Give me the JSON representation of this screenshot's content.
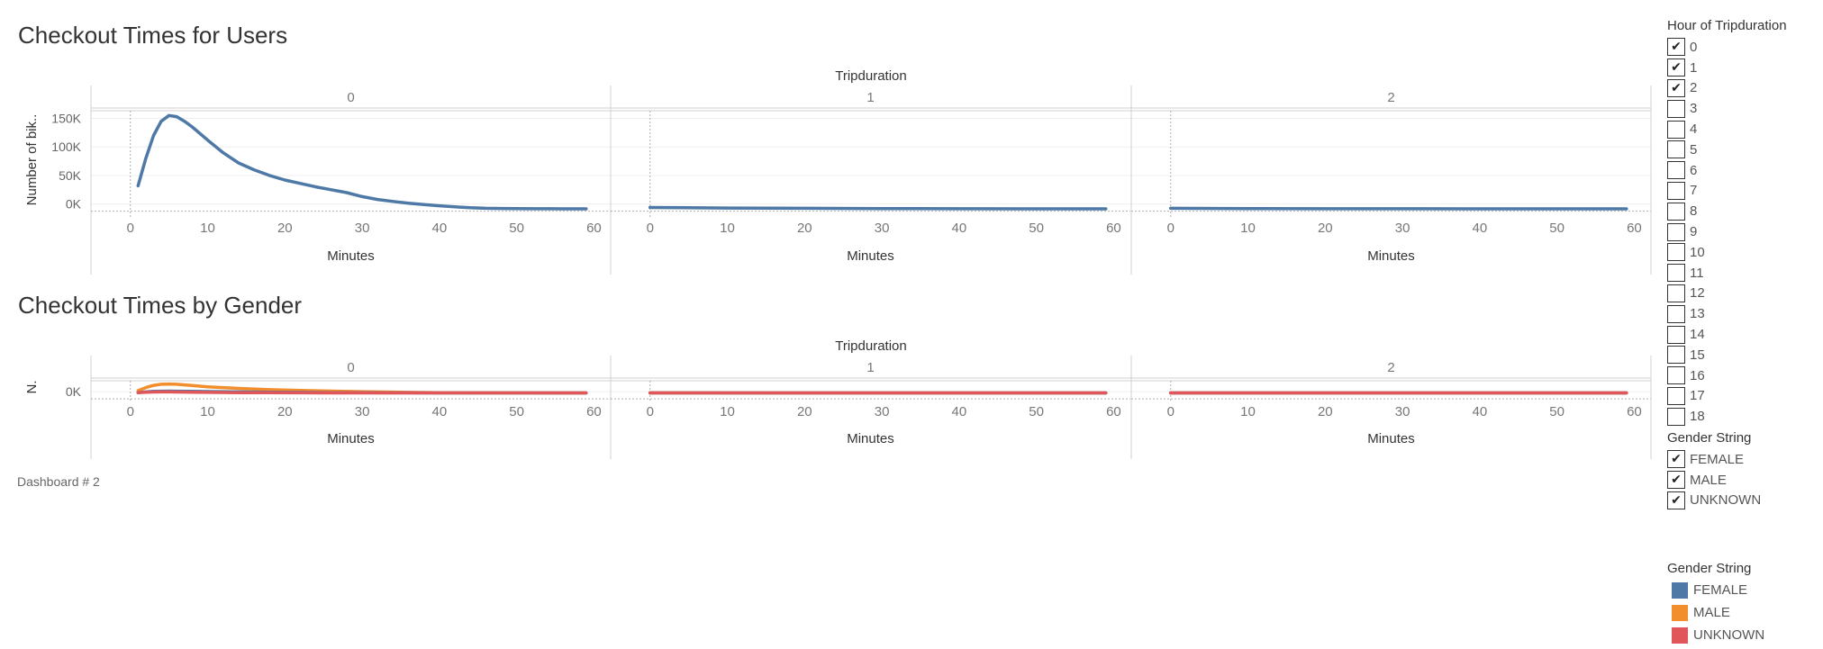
{
  "dashboard": {
    "caption": "Dashboard # 2"
  },
  "filters": {
    "hour": {
      "title": "Hour of Tripduration",
      "items": [
        {
          "label": "0",
          "checked": true
        },
        {
          "label": "1",
          "checked": true
        },
        {
          "label": "2",
          "checked": true
        },
        {
          "label": "3",
          "checked": false
        },
        {
          "label": "4",
          "checked": false
        },
        {
          "label": "5",
          "checked": false
        },
        {
          "label": "6",
          "checked": false
        },
        {
          "label": "7",
          "checked": false
        },
        {
          "label": "8",
          "checked": false
        },
        {
          "label": "9",
          "checked": false
        },
        {
          "label": "10",
          "checked": false
        },
        {
          "label": "11",
          "checked": false
        },
        {
          "label": "12",
          "checked": false
        },
        {
          "label": "13",
          "checked": false
        },
        {
          "label": "14",
          "checked": false
        },
        {
          "label": "15",
          "checked": false
        },
        {
          "label": "16",
          "checked": false
        },
        {
          "label": "17",
          "checked": false
        },
        {
          "label": "18",
          "checked": false
        }
      ]
    },
    "gender": {
      "title": "Gender String",
      "items": [
        {
          "label": "FEMALE",
          "checked": true
        },
        {
          "label": "MALE",
          "checked": true
        },
        {
          "label": "UNKNOWN",
          "checked": true
        }
      ]
    }
  },
  "legend": {
    "title": "Gender String",
    "items": [
      {
        "label": "FEMALE",
        "color": "#4e79a7"
      },
      {
        "label": "MALE",
        "color": "#f28e2b"
      },
      {
        "label": "UNKNOWN",
        "color": "#e15759"
      }
    ]
  },
  "chart_data": [
    {
      "type": "line",
      "title": "Checkout Times for Users",
      "column_header": "Tripduration",
      "panels": [
        "0",
        "1",
        "2"
      ],
      "xlabel": "Minutes",
      "ylabel": "Number of bik..",
      "xlim": [
        -3,
        61
      ],
      "xticks": [
        0,
        10,
        20,
        30,
        40,
        50,
        60
      ],
      "ylim": [
        -10000,
        165000
      ],
      "yticks": [
        {
          "value": 0,
          "label": "0K"
        },
        {
          "value": 50000,
          "label": "50K"
        },
        {
          "value": 100000,
          "label": "100K"
        },
        {
          "value": 150000,
          "label": "150K"
        }
      ],
      "series": [
        {
          "color": "#4e79a7",
          "panels": [
            {
              "x": [
                1,
                2,
                3,
                4,
                5,
                6,
                7,
                8,
                10,
                12,
                14,
                16,
                18,
                20,
                22,
                24,
                26,
                28,
                30,
                32,
                34,
                36,
                38,
                40,
                42,
                44,
                46,
                48,
                50,
                52,
                54,
                56,
                58,
                59
              ],
              "y": [
                32000,
                80000,
                120000,
                145000,
                155000,
                153000,
                145000,
                135000,
                112000,
                90000,
                72000,
                60000,
                50000,
                42000,
                36000,
                30000,
                25000,
                20000,
                13000,
                8000,
                4500,
                1500,
                -1000,
                -3000,
                -5000,
                -6500,
                -7500,
                -7800,
                -8000,
                -8200,
                -8300,
                -8400,
                -8500,
                -8500
              ]
            },
            {
              "x": [
                0,
                10,
                20,
                30,
                40,
                50,
                59
              ],
              "y": [
                -6000,
                -7000,
                -7500,
                -8000,
                -8200,
                -8400,
                -8500
              ]
            },
            {
              "x": [
                0,
                10,
                20,
                30,
                40,
                50,
                59
              ],
              "y": [
                -7500,
                -8000,
                -8200,
                -8300,
                -8400,
                -8500,
                -8500
              ]
            }
          ]
        }
      ]
    },
    {
      "type": "line",
      "title": "Checkout Times by Gender",
      "column_header": "Tripduration",
      "panels": [
        "0",
        "1",
        "2"
      ],
      "xlabel": "Minutes",
      "ylabel": "N.",
      "xlim": [
        -3,
        61
      ],
      "xticks": [
        0,
        10,
        20,
        30,
        40,
        50,
        60
      ],
      "ylim": [
        -25000,
        115000
      ],
      "yticks": [
        {
          "value": 0,
          "label": "0K"
        }
      ],
      "series": [
        {
          "name": "MALE",
          "color": "#f28e2b",
          "panels": [
            {
              "x": [
                1,
                2,
                3,
                4,
                5,
                6,
                8,
                10,
                14,
                18,
                22,
                26,
                30,
                35,
                40,
                50,
                59
              ],
              "y": [
                10000,
                40000,
                62000,
                72000,
                75000,
                72000,
                60000,
                48000,
                32000,
                20000,
                12000,
                6000,
                0,
                -6000,
                -9000,
                -11000,
                -12000
              ]
            },
            {
              "x": [
                0,
                30,
                59
              ],
              "y": [
                -11000,
                -12000,
                -12000
              ]
            },
            {
              "x": [
                0,
                30,
                59
              ],
              "y": [
                -12000,
                -12000,
                -12000
              ]
            }
          ]
        },
        {
          "name": "FEMALE",
          "color": "#4e79a7",
          "panels": [
            {
              "x": [
                1,
                2,
                3,
                4,
                5,
                6,
                8,
                10,
                14,
                18,
                22,
                26,
                30,
                35,
                40,
                50,
                59
              ],
              "y": [
                -8000,
                -2000,
                3000,
                5000,
                6000,
                5000,
                3000,
                1000,
                -2000,
                -5000,
                -7000,
                -9000,
                -10000,
                -11000,
                -11500,
                -12000,
                -12000
              ]
            },
            {
              "x": [
                0,
                30,
                59
              ],
              "y": [
                -11500,
                -12000,
                -12000
              ]
            },
            {
              "x": [
                0,
                30,
                59
              ],
              "y": [
                -12000,
                -12000,
                -12000
              ]
            }
          ]
        },
        {
          "name": "UNKNOWN",
          "color": "#e15759",
          "panels": [
            {
              "x": [
                1,
                2,
                3,
                4,
                5,
                6,
                8,
                10,
                14,
                18,
                22,
                26,
                30,
                59
              ],
              "y": [
                -9000,
                -5000,
                -3000,
                -2000,
                -2000,
                -3000,
                -5000,
                -7000,
                -9000,
                -10000,
                -11000,
                -11500,
                -12000,
                -12000
              ]
            },
            {
              "x": [
                0,
                59
              ],
              "y": [
                -12000,
                -12000
              ]
            },
            {
              "x": [
                0,
                59
              ],
              "y": [
                -12000,
                -12000
              ]
            }
          ]
        }
      ]
    }
  ]
}
